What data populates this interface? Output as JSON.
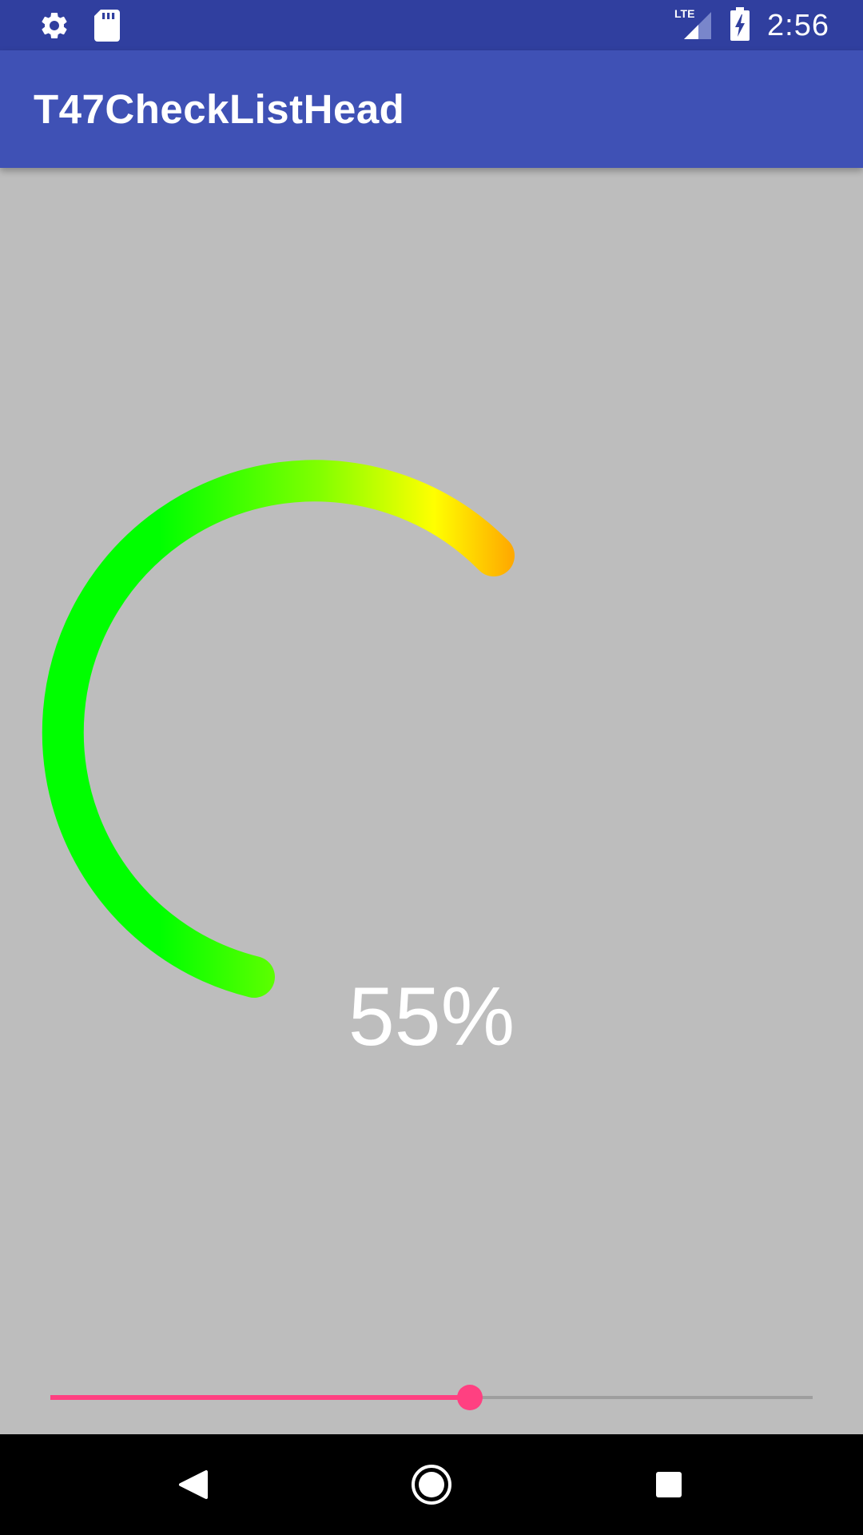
{
  "status_bar": {
    "time": "2:56",
    "network_label": "LTE",
    "left_icons": [
      "settings-icon",
      "sd-card-icon"
    ],
    "right_icons": [
      "lte-signal-icon",
      "battery-charging-icon"
    ],
    "background_color": "#303f9f"
  },
  "app_bar": {
    "title": "T47CheckListHead",
    "background_color": "#3f51b5"
  },
  "gauge": {
    "percent_text": "55%",
    "value": 0.55,
    "gradient_colors": [
      "#00ff00",
      "#80ff00",
      "#ffff00",
      "#ffaa00"
    ]
  },
  "seekbar": {
    "value": 0.55,
    "progress_color": "#ff4081",
    "track_color": "#9e9e9e"
  },
  "nav_bar": {
    "buttons": [
      "back-icon",
      "home-icon",
      "recents-icon"
    ]
  },
  "content": {
    "background_color": "#bdbdbd"
  }
}
